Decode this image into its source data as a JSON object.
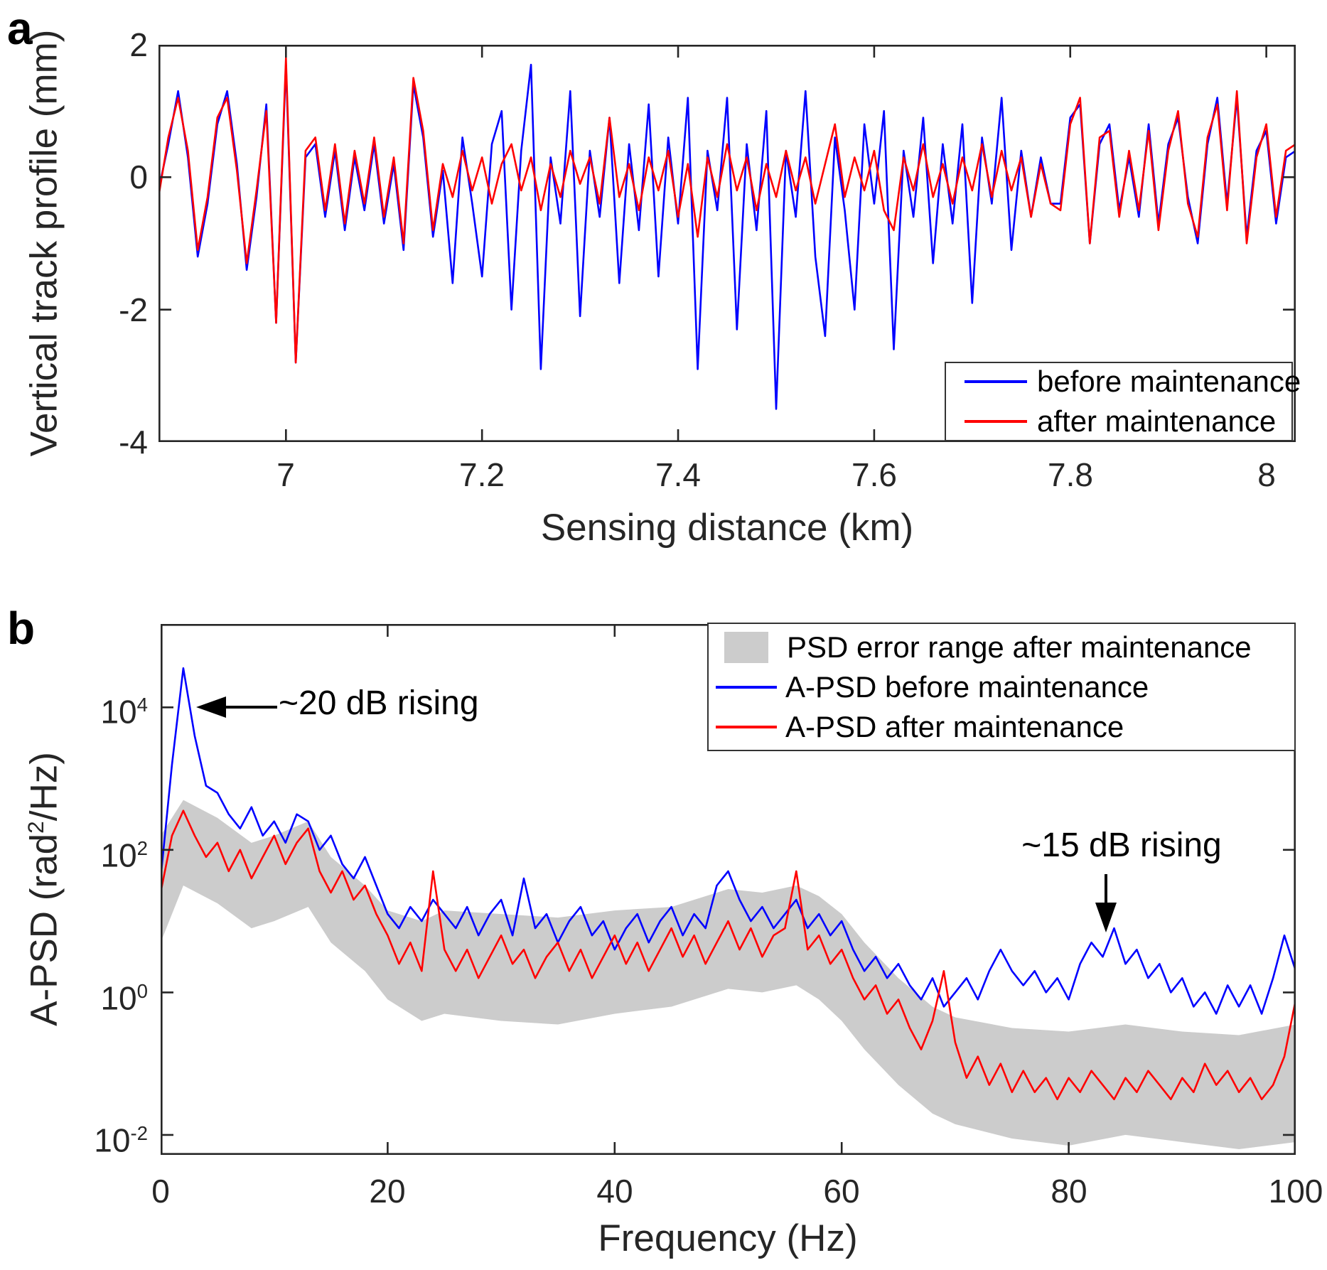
{
  "figure": {
    "panel_a_letter": "a",
    "panel_b_letter": "b",
    "accent_blue": "#0000FF",
    "accent_red": "#FF0000",
    "band_gray": "#CCCCCC",
    "axis_color": "#262626"
  },
  "chart_data": [
    {
      "id": "a",
      "type": "line",
      "xlabel": "Sensing distance (km)",
      "ylabel": "Vertical track profile (mm)",
      "xlim": [
        6.87,
        8.03
      ],
      "ylim": [
        -4,
        2
      ],
      "grid": false,
      "legend_position": "lower right inside",
      "x_ticks": [
        {
          "v": 7,
          "label": "7"
        },
        {
          "v": 7.2,
          "label": "7.2"
        },
        {
          "v": 7.4,
          "label": "7.4"
        },
        {
          "v": 7.6,
          "label": "7.6"
        },
        {
          "v": 7.8,
          "label": "7.8"
        },
        {
          "v": 8,
          "label": "8"
        }
      ],
      "y_ticks": [
        {
          "v": 2,
          "label": "2"
        },
        {
          "v": 0,
          "label": "0"
        },
        {
          "v": -2,
          "label": "-2"
        },
        {
          "v": -4,
          "label": "-4"
        }
      ],
      "x_start": 6.87,
      "x_step": 0.01,
      "series": [
        {
          "name": "before maintenance",
          "color": "#0000FF",
          "values": [
            -0.2,
            0.5,
            1.3,
            0.3,
            -1.2,
            -0.4,
            0.8,
            1.3,
            0.2,
            -1.4,
            -0.3,
            1.1,
            -2.2,
            1.7,
            -2.8,
            0.3,
            0.5,
            -0.6,
            0.4,
            -0.8,
            0.3,
            -0.5,
            0.5,
            -0.7,
            0.2,
            -1.1,
            1.4,
            0.6,
            -0.9,
            0.1,
            -1.6,
            0.6,
            -0.4,
            -1.5,
            0.5,
            1.0,
            -2.0,
            0.4,
            1.7,
            -2.9,
            0.3,
            -0.7,
            1.3,
            -2.1,
            0.4,
            -0.6,
            0.9,
            -1.6,
            0.5,
            -0.8,
            1.1,
            -1.5,
            0.6,
            -0.7,
            1.2,
            -2.9,
            0.4,
            -0.5,
            1.2,
            -2.3,
            0.5,
            -0.8,
            1.0,
            -3.5,
            0.4,
            -0.6,
            1.3,
            -1.2,
            -2.4,
            0.6,
            -0.5,
            -2.0,
            0.8,
            -0.4,
            1.0,
            -2.6,
            0.4,
            -0.6,
            0.9,
            -1.3,
            0.5,
            -0.7,
            0.8,
            -1.9,
            0.6,
            -0.4,
            1.2,
            -1.1,
            0.4,
            -0.6,
            0.3,
            -0.4,
            -0.4,
            0.9,
            1.1,
            -1.0,
            0.5,
            0.8,
            -0.5,
            0.3,
            -0.6,
            0.8,
            -0.7,
            0.5,
            0.9,
            -0.3,
            -1.0,
            0.5,
            1.2,
            -0.4,
            1.2,
            -0.9,
            0.4,
            0.7,
            -0.7,
            0.3,
            0.4
          ]
        },
        {
          "name": "after maintenance",
          "color": "#FF0000",
          "values": [
            -0.3,
            0.6,
            1.2,
            0.4,
            -1.1,
            -0.3,
            0.9,
            1.2,
            0.1,
            -1.3,
            -0.2,
            1.0,
            -2.2,
            1.8,
            -2.8,
            0.4,
            0.6,
            -0.5,
            0.5,
            -0.7,
            0.4,
            -0.4,
            0.6,
            -0.6,
            0.3,
            -1.0,
            1.5,
            0.7,
            -0.8,
            0.2,
            -0.3,
            0.4,
            -0.2,
            0.3,
            -0.4,
            0.2,
            0.5,
            -0.2,
            0.3,
            -0.5,
            0.2,
            -0.3,
            0.4,
            -0.1,
            0.3,
            -0.4,
            0.9,
            -0.3,
            0.2,
            -0.5,
            0.3,
            -0.2,
            0.4,
            -0.6,
            0.2,
            -0.9,
            0.3,
            -0.3,
            0.5,
            -0.2,
            0.3,
            -0.5,
            0.2,
            -0.3,
            0.4,
            -0.2,
            0.3,
            -0.4,
            0.2,
            0.8,
            -0.3,
            0.3,
            -0.2,
            0.4,
            -0.5,
            -0.8,
            0.3,
            -0.2,
            0.5,
            -0.3,
            0.2,
            -0.4,
            0.3,
            -0.2,
            0.5,
            -0.3,
            0.4,
            -0.2,
            0.3,
            -0.6,
            0.2,
            -0.4,
            -0.5,
            0.8,
            1.2,
            -1.0,
            0.6,
            0.7,
            -0.6,
            0.4,
            -0.5,
            0.7,
            -0.8,
            0.4,
            1.0,
            -0.4,
            -0.9,
            0.6,
            1.1,
            -0.5,
            1.3,
            -1.0,
            0.3,
            0.8,
            -0.6,
            0.4,
            0.5
          ]
        }
      ]
    },
    {
      "id": "b",
      "type": "line",
      "xlabel": "Frequency (Hz)",
      "ylabel_parts": {
        "prefix": "A-PSD (rad",
        "sup": "2",
        "suffix": "/Hz)"
      },
      "xlim": [
        0,
        100
      ],
      "yscale": "log10",
      "ylim_log10": [
        -2.28,
        5.17
      ],
      "grid": false,
      "legend_position": "upper right inside",
      "x_ticks": [
        {
          "v": 0,
          "label": "0"
        },
        {
          "v": 20,
          "label": "20"
        },
        {
          "v": 40,
          "label": "40"
        },
        {
          "v": 60,
          "label": "60"
        },
        {
          "v": 80,
          "label": "80"
        },
        {
          "v": 100,
          "label": "100"
        }
      ],
      "y_ticks": [
        {
          "v": 4,
          "base": "10",
          "exp": "4"
        },
        {
          "v": 2,
          "base": "10",
          "exp": "2"
        },
        {
          "v": 0,
          "base": "10",
          "exp": "0"
        },
        {
          "v": -2,
          "base": "10",
          "exp": "-2"
        }
      ],
      "band": {
        "name": "PSD error range after maintenance",
        "color": "#CCCCCC",
        "x": [
          0,
          2,
          5,
          8,
          10,
          13,
          15,
          18,
          20,
          23,
          25,
          30,
          35,
          40,
          45,
          50,
          53,
          56,
          58,
          60,
          62,
          65,
          68,
          70,
          75,
          80,
          85,
          90,
          95,
          100
        ],
        "upper_log10": [
          2.2,
          2.7,
          2.45,
          2.1,
          2.2,
          2.4,
          1.9,
          1.5,
          1.15,
          1.0,
          1.15,
          1.1,
          1.05,
          1.15,
          1.2,
          1.45,
          1.4,
          1.5,
          1.35,
          1.1,
          0.7,
          0.2,
          -0.2,
          -0.35,
          -0.5,
          -0.55,
          -0.45,
          -0.55,
          -0.6,
          -0.45
        ],
        "lower_log10": [
          0.7,
          1.5,
          1.25,
          0.9,
          1.0,
          1.2,
          0.7,
          0.3,
          -0.1,
          -0.4,
          -0.3,
          -0.4,
          -0.45,
          -0.3,
          -0.2,
          0.05,
          0.0,
          0.1,
          -0.1,
          -0.4,
          -0.8,
          -1.3,
          -1.7,
          -1.85,
          -2.05,
          -2.15,
          -2.0,
          -2.1,
          -2.2,
          -2.1
        ]
      },
      "x_start": 0,
      "x_step": 1,
      "series": [
        {
          "name": "A-PSD before maintenance",
          "color": "#0000FF",
          "log10_values": [
            1.6,
            3.2,
            4.55,
            3.6,
            2.9,
            2.8,
            2.5,
            2.3,
            2.6,
            2.2,
            2.4,
            2.1,
            2.5,
            2.4,
            2.0,
            2.2,
            1.8,
            1.6,
            1.9,
            1.5,
            1.1,
            0.9,
            1.2,
            1.0,
            1.3,
            1.1,
            0.9,
            1.2,
            0.8,
            1.1,
            1.3,
            0.8,
            1.6,
            0.9,
            1.1,
            0.7,
            1.0,
            1.2,
            0.8,
            1.0,
            0.6,
            0.9,
            1.1,
            0.7,
            1.0,
            1.2,
            0.8,
            1.1,
            0.9,
            1.5,
            1.7,
            1.3,
            1.0,
            1.2,
            0.9,
            1.1,
            1.3,
            0.9,
            1.1,
            0.8,
            1.0,
            0.6,
            0.3,
            0.5,
            0.2,
            0.4,
            0.1,
            -0.1,
            0.2,
            -0.2,
            0.0,
            0.2,
            -0.1,
            0.3,
            0.6,
            0.3,
            0.1,
            0.3,
            0.0,
            0.2,
            -0.1,
            0.4,
            0.7,
            0.5,
            0.9,
            0.4,
            0.6,
            0.2,
            0.4,
            0.0,
            0.2,
            -0.2,
            0.0,
            -0.3,
            0.1,
            -0.2,
            0.1,
            -0.3,
            0.2,
            0.8,
            0.3
          ]
        },
        {
          "name": "A-PSD after maintenance",
          "color": "#FF0000",
          "log10_values": [
            1.4,
            2.2,
            2.55,
            2.2,
            1.9,
            2.1,
            1.7,
            2.0,
            1.6,
            1.9,
            2.2,
            1.8,
            2.1,
            2.3,
            1.7,
            1.4,
            1.7,
            1.3,
            1.5,
            1.1,
            0.8,
            0.4,
            0.7,
            0.3,
            1.7,
            0.6,
            0.3,
            0.6,
            0.2,
            0.5,
            0.8,
            0.4,
            0.6,
            0.2,
            0.5,
            0.7,
            0.3,
            0.6,
            0.2,
            0.5,
            0.8,
            0.4,
            0.7,
            0.3,
            0.6,
            0.9,
            0.5,
            0.8,
            0.4,
            0.7,
            1.0,
            0.6,
            0.9,
            0.5,
            0.8,
            0.9,
            1.7,
            0.6,
            0.8,
            0.4,
            0.6,
            0.2,
            -0.1,
            0.1,
            -0.3,
            -0.1,
            -0.5,
            -0.8,
            -0.4,
            0.3,
            -0.7,
            -1.2,
            -0.9,
            -1.3,
            -1.0,
            -1.4,
            -1.1,
            -1.4,
            -1.2,
            -1.5,
            -1.2,
            -1.4,
            -1.1,
            -1.3,
            -1.5,
            -1.2,
            -1.4,
            -1.1,
            -1.3,
            -1.5,
            -1.2,
            -1.4,
            -1.0,
            -1.3,
            -1.1,
            -1.4,
            -1.2,
            -1.5,
            -1.3,
            -0.9,
            -0.1
          ]
        }
      ],
      "annotations": [
        {
          "text": "~20 dB rising",
          "arrow": "left",
          "points_at_hz": 2,
          "level_log10": 4
        },
        {
          "text": "~15 dB rising",
          "arrow": "down",
          "points_at_hz": 83.5
        }
      ]
    }
  ],
  "legend_a": {
    "items": [
      {
        "label": "before maintenance",
        "color": "#0000FF"
      },
      {
        "label": "after maintenance",
        "color": "#FF0000"
      }
    ]
  },
  "legend_b": {
    "items": [
      {
        "label": "PSD error range after maintenance",
        "swatch": "patch",
        "color": "#CCCCCC"
      },
      {
        "label": "A-PSD before maintenance",
        "swatch": "line",
        "color": "#0000FF"
      },
      {
        "label": "A-PSD after maintenance",
        "swatch": "line",
        "color": "#FF0000"
      }
    ]
  }
}
